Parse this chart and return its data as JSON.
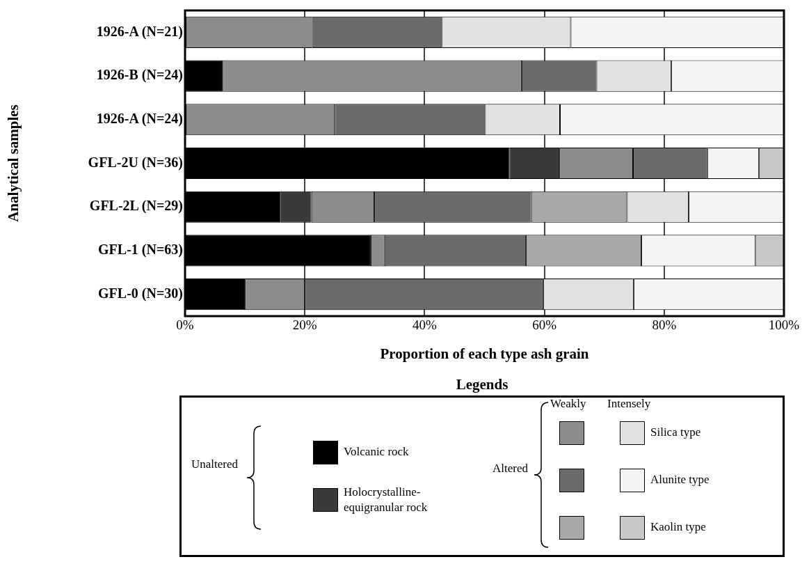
{
  "chart_data": {
    "type": "bar",
    "orientation": "horizontal",
    "stacked": true,
    "categories": [
      "1926-A (N=21)",
      "1926-B (N=24)",
      "1926-A (N=24)",
      "GFL-2U (N=36)",
      "GFL-2L (N=29)",
      "GFL-1 (N=63)",
      "GFL-0 (N=30)"
    ],
    "series": [
      {
        "name": "Volcanic rock",
        "color": "#000000",
        "values": [
          null,
          6.3,
          null,
          54.2,
          16.0,
          31.0,
          10.0
        ]
      },
      {
        "name": "Holocrystalline-equigranular rock",
        "color": "#3a3a3a",
        "values": [
          null,
          null,
          null,
          8.3,
          5.1,
          null,
          null
        ]
      },
      {
        "color": "#8c8c8c",
        "values": [
          21.2,
          49.9,
          25.0,
          12.3,
          10.5,
          2.3,
          10.0
        ]
      },
      {
        "color": "#6a6a6a",
        "values": [
          21.7,
          12.5,
          25.1,
          12.4,
          26.2,
          23.6,
          39.8
        ]
      },
      {
        "color": "#a8a8a8",
        "values": [
          null,
          null,
          null,
          null,
          16.0,
          19.3,
          null
        ]
      },
      {
        "name": "Silica type",
        "color": "#e2e2e2",
        "values": [
          21.5,
          12.5,
          12.5,
          null,
          10.3,
          null,
          15.1
        ]
      },
      {
        "name": "Alunite type",
        "color": "#f4f4f4",
        "values": [
          35.6,
          18.8,
          37.4,
          8.6,
          15.9,
          19.0,
          25.1
        ]
      },
      {
        "name": "Kaolin type",
        "color": "#c8c8c8",
        "values": [
          null,
          null,
          null,
          4.2,
          null,
          4.8,
          null
        ]
      }
    ],
    "xlim": [
      0,
      100
    ],
    "xticks": [
      {
        "value": 0,
        "label": "0%"
      },
      {
        "value": 20,
        "label": "20%"
      },
      {
        "value": 40,
        "label": "40%"
      },
      {
        "value": 60,
        "label": "60%"
      },
      {
        "value": 80,
        "label": "80%"
      },
      {
        "value": 100,
        "label": "100%"
      }
    ],
    "xlabel": "Proportion of each type ash grain",
    "ylabel": "Analytical samples",
    "grid": "x",
    "legend": "bottom",
    "legend_title": "Legends",
    "annotations": [
      "Unaltered",
      "Altered",
      "Weakly",
      "Intensely"
    ]
  }
}
